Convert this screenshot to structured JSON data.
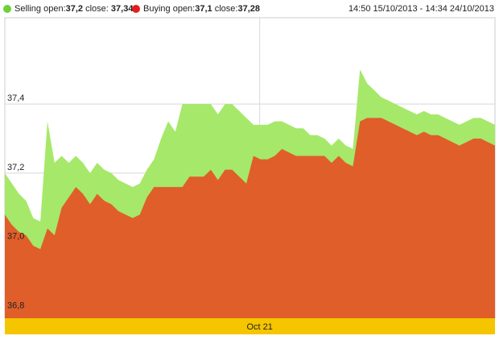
{
  "chart_data": {
    "type": "area",
    "legend": {
      "selling": {
        "label": "Selling",
        "open_label": "open:",
        "open_value": "37,2",
        "close_label": "close:",
        "close_value": "37,34"
      },
      "buying": {
        "label": "Buying",
        "open_label": "open:",
        "open_value": "37,1",
        "close_label": "close:",
        "close_value": "37,28"
      }
    },
    "date_range": "14:50 15/10/2013 - 14:34 24/10/2013",
    "ylim": [
      36.78,
      37.65
    ],
    "yticks": [
      {
        "value": 36.8,
        "label": "36,8"
      },
      {
        "value": 37.0,
        "label": "37,0"
      },
      {
        "value": 37.2,
        "label": "37,2"
      },
      {
        "value": 37.4,
        "label": "37,4"
      }
    ],
    "x_band_label": "Oct 21",
    "x_band_position": 0.52,
    "series": [
      {
        "name": "Selling",
        "color": "#a6e869",
        "values": [
          37.2,
          37.17,
          37.14,
          37.12,
          37.07,
          37.06,
          37.35,
          37.23,
          37.25,
          37.23,
          37.25,
          37.23,
          37.2,
          37.23,
          37.21,
          37.2,
          37.18,
          37.17,
          37.16,
          37.17,
          37.21,
          37.24,
          37.3,
          37.35,
          37.32,
          37.4,
          37.4,
          37.4,
          37.4,
          37.4,
          37.37,
          37.4,
          37.4,
          37.38,
          37.36,
          37.34,
          37.34,
          37.34,
          37.35,
          37.35,
          37.34,
          37.33,
          37.33,
          37.31,
          37.31,
          37.3,
          37.28,
          37.3,
          37.28,
          37.27,
          37.5,
          37.46,
          37.44,
          37.42,
          37.41,
          37.4,
          37.39,
          37.38,
          37.37,
          37.38,
          37.37,
          37.37,
          37.36,
          37.35,
          37.34,
          37.35,
          37.36,
          37.36,
          37.35,
          37.34
        ]
      },
      {
        "name": "Buying",
        "color": "#e05e2a",
        "values": [
          37.08,
          37.05,
          37.03,
          37.02,
          36.99,
          36.98,
          37.04,
          37.02,
          37.1,
          37.13,
          37.16,
          37.14,
          37.11,
          37.14,
          37.12,
          37.11,
          37.09,
          37.08,
          37.07,
          37.08,
          37.13,
          37.16,
          37.16,
          37.16,
          37.16,
          37.16,
          37.19,
          37.19,
          37.19,
          37.21,
          37.18,
          37.21,
          37.21,
          37.19,
          37.17,
          37.25,
          37.24,
          37.24,
          37.25,
          37.27,
          37.26,
          37.25,
          37.25,
          37.25,
          37.25,
          37.25,
          37.23,
          37.25,
          37.23,
          37.22,
          37.35,
          37.36,
          37.36,
          37.36,
          37.35,
          37.34,
          37.33,
          37.32,
          37.31,
          37.32,
          37.31,
          37.31,
          37.3,
          37.29,
          37.28,
          37.29,
          37.3,
          37.3,
          37.29,
          37.28
        ]
      }
    ]
  }
}
